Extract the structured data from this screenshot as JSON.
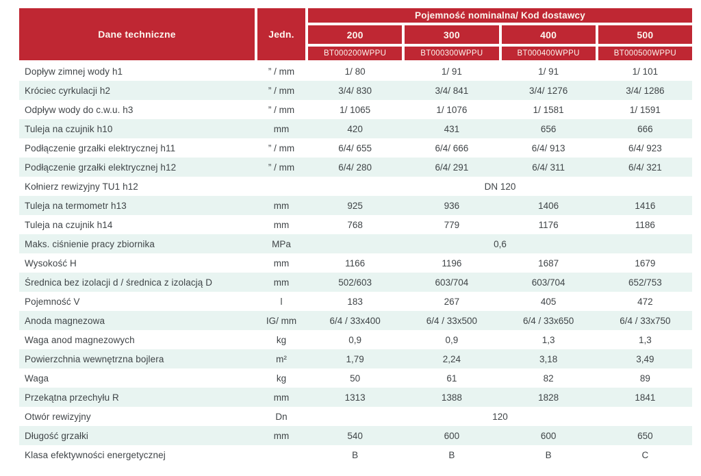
{
  "colors": {
    "header_red": "#bf2733",
    "row_mint": "#e8f4f1",
    "body_text": "#3f4447",
    "header_text": "#fcf6ef"
  },
  "header": {
    "col_label": "Dane techniczne",
    "col_unit": "Jedn.",
    "group_label": "Pojemność nominalna/ Kod dostawcy",
    "sizes": [
      "200",
      "300",
      "400",
      "500"
    ],
    "codes": [
      "BT000200WPPU",
      "BT000300WPPU",
      "BT000400WPPU",
      "BT000500WPPU"
    ]
  },
  "rows": [
    {
      "label": "Dopływ zimnej wody h1",
      "unit": "” / mm",
      "values": [
        "1/ 80",
        "1/ 91",
        "1/ 91",
        "1/ 101"
      ]
    },
    {
      "label": "Króciec cyrkulacji h2",
      "unit": "” / mm",
      "values": [
        "3/4/ 830",
        "3/4/ 841",
        "3/4/ 1276",
        "3/4/ 1286"
      ]
    },
    {
      "label": "Odpływ wody do c.w.u. h3",
      "unit": "” / mm",
      "values": [
        "1/ 1065",
        "1/ 1076",
        "1/ 1581",
        "1/ 1591"
      ]
    },
    {
      "label": "Tuleja na czujnik h10",
      "unit": "mm",
      "values": [
        "420",
        "431",
        "656",
        "666"
      ]
    },
    {
      "label": "Podłączenie grzałki elektrycznej h11",
      "unit": "” / mm",
      "values": [
        "6/4/ 655",
        "6/4/ 666",
        "6/4/ 913",
        "6/4/ 923"
      ]
    },
    {
      "label": "Podłączenie grzałki elektrycznej h12",
      "unit": "” / mm",
      "values": [
        "6/4/ 280",
        "6/4/ 291",
        "6/4/ 311",
        "6/4/ 321"
      ]
    },
    {
      "label": "Kołnierz rewizyjny TU1 h12",
      "unit": "",
      "span_value": "DN 120"
    },
    {
      "label": "Tuleja na termometr h13",
      "unit": "mm",
      "values": [
        "925",
        "936",
        "1406",
        "1416"
      ]
    },
    {
      "label": "Tuleja na czujnik h14",
      "unit": "mm",
      "values": [
        "768",
        "779",
        "1176",
        "1186"
      ]
    },
    {
      "label": "Maks. ciśnienie pracy zbiornika",
      "unit": "MPa",
      "span_value": "0,6"
    },
    {
      "label": "Wysokość H",
      "unit": "mm",
      "values": [
        "1166",
        "1196",
        "1687",
        "1679"
      ]
    },
    {
      "label": "Średnica bez izolacji d / średnica z izolacją D",
      "unit": "mm",
      "values": [
        "502/603",
        "603/704",
        "603/704",
        "652/753"
      ]
    },
    {
      "label": "Pojemność V",
      "unit": "l",
      "values": [
        "183",
        "267",
        "405",
        "472"
      ]
    },
    {
      "label": "Anoda magnezowa",
      "unit": "IG/ mm",
      "values": [
        "6/4 / 33x400",
        "6/4 / 33x500",
        "6/4 / 33x650",
        "6/4 / 33x750"
      ]
    },
    {
      "label": "Waga anod magnezowych",
      "unit": "kg",
      "values": [
        "0,9",
        "0,9",
        "1,3",
        "1,3"
      ]
    },
    {
      "label": "Powierzchnia wewnętrzna bojlera",
      "unit": "m²",
      "values": [
        "1,79",
        "2,24",
        "3,18",
        "3,49"
      ]
    },
    {
      "label": "Waga",
      "unit": "kg",
      "values": [
        "50",
        "61",
        "82",
        "89"
      ]
    },
    {
      "label": "Przekątna przechyłu R",
      "unit": "mm",
      "values": [
        "1313",
        "1388",
        "1828",
        "1841"
      ]
    },
    {
      "label": "Otwór rewizyjny",
      "unit": "Dn",
      "span_value": "120"
    },
    {
      "label": "Długość grzałki",
      "unit": "mm",
      "values": [
        "540",
        "600",
        "600",
        "650"
      ]
    },
    {
      "label": "Klasa efektywności energetycznej",
      "unit": "",
      "values": [
        "B",
        "B",
        "B",
        "C"
      ]
    }
  ]
}
